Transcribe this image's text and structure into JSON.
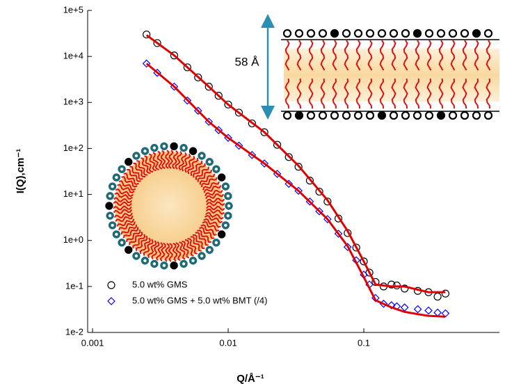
{
  "chart_data": {
    "type": "scatter",
    "xlabel": "Q/Å⁻¹",
    "ylabel": "I(Q),cm⁻¹",
    "log_x": true,
    "log_y": true,
    "xlim": [
      0.00092,
      1
    ],
    "ylim": [
      0.01,
      100000
    ],
    "xticks": [
      0.001,
      0.01,
      0.1
    ],
    "yticks": [
      {
        "value": 0.01,
        "label": "1e-2"
      },
      {
        "value": 0.1,
        "label": "1e-1"
      },
      {
        "value": 1,
        "label": "1e+0"
      },
      {
        "value": 10,
        "label": "1e+1"
      },
      {
        "value": 100,
        "label": "1e+2"
      },
      {
        "value": 1000,
        "label": "1e+3"
      },
      {
        "value": 10000,
        "label": "1e+4"
      },
      {
        "value": 100000,
        "label": "1e+5"
      }
    ],
    "legend": "lower left",
    "annotation": "58 Å",
    "series": [
      {
        "name": "5.0 wt% GMS",
        "color": "#000000",
        "marker": "circle",
        "x": [
          0.0025,
          0.003,
          0.004,
          0.005,
          0.006,
          0.0072,
          0.0085,
          0.01,
          0.012,
          0.015,
          0.0185,
          0.023,
          0.028,
          0.033,
          0.04,
          0.047,
          0.054,
          0.065,
          0.076,
          0.088,
          0.1,
          0.11,
          0.122,
          0.14,
          0.16,
          0.175,
          0.2,
          0.25,
          0.3,
          0.35,
          0.4
        ],
        "values": [
          30000,
          19500,
          10500,
          5800,
          3500,
          2200,
          1400,
          900,
          600,
          350,
          225,
          120,
          65,
          40,
          20,
          11.5,
          7,
          3,
          1.45,
          0.7,
          0.35,
          0.2,
          0.125,
          0.1,
          0.11,
          0.105,
          0.09,
          0.08,
          0.075,
          0.06,
          0.07
        ]
      },
      {
        "name": "5.0 wt% GMS + 5.0 wt% BMT (/4)",
        "color": "#0000ff",
        "marker": "diamond",
        "x": [
          0.0025,
          0.003,
          0.004,
          0.005,
          0.006,
          0.0072,
          0.0085,
          0.01,
          0.012,
          0.015,
          0.0185,
          0.023,
          0.028,
          0.033,
          0.04,
          0.047,
          0.054,
          0.065,
          0.076,
          0.088,
          0.1,
          0.11,
          0.122,
          0.14,
          0.16,
          0.175,
          0.2,
          0.25,
          0.3,
          0.35,
          0.4
        ],
        "values": [
          7000,
          4400,
          2200,
          1100,
          660,
          380,
          250,
          170,
          115,
          72,
          47,
          28,
          17,
          12,
          7,
          4.3,
          2.9,
          1.4,
          0.72,
          0.37,
          0.18,
          0.11,
          0.056,
          0.042,
          0.039,
          0.037,
          0.035,
          0.032,
          0.03,
          0.027,
          0.026
        ]
      },
      {
        "color": "#e00000",
        "marker": "line",
        "x": [
          0.0025,
          0.004,
          0.0072,
          0.01,
          0.0185,
          0.033,
          0.054,
          0.076,
          0.1,
          0.122,
          0.16,
          0.2,
          0.25,
          0.3,
          0.4
        ],
        "values": [
          29000,
          10500,
          2200,
          900,
          225,
          42,
          7.5,
          1.6,
          0.35,
          0.11,
          0.1,
          0.1,
          0.085,
          0.075,
          0.075
        ]
      },
      {
        "color": "#e00000",
        "marker": "line",
        "x": [
          0.0025,
          0.004,
          0.0072,
          0.01,
          0.0185,
          0.033,
          0.054,
          0.076,
          0.1,
          0.122,
          0.16,
          0.2,
          0.25,
          0.3,
          0.4
        ],
        "values": [
          7000,
          2200,
          380,
          170,
          47,
          12,
          2.9,
          0.75,
          0.16,
          0.05,
          0.035,
          0.028,
          0.025,
          0.023,
          0.022
        ]
      }
    ]
  }
}
